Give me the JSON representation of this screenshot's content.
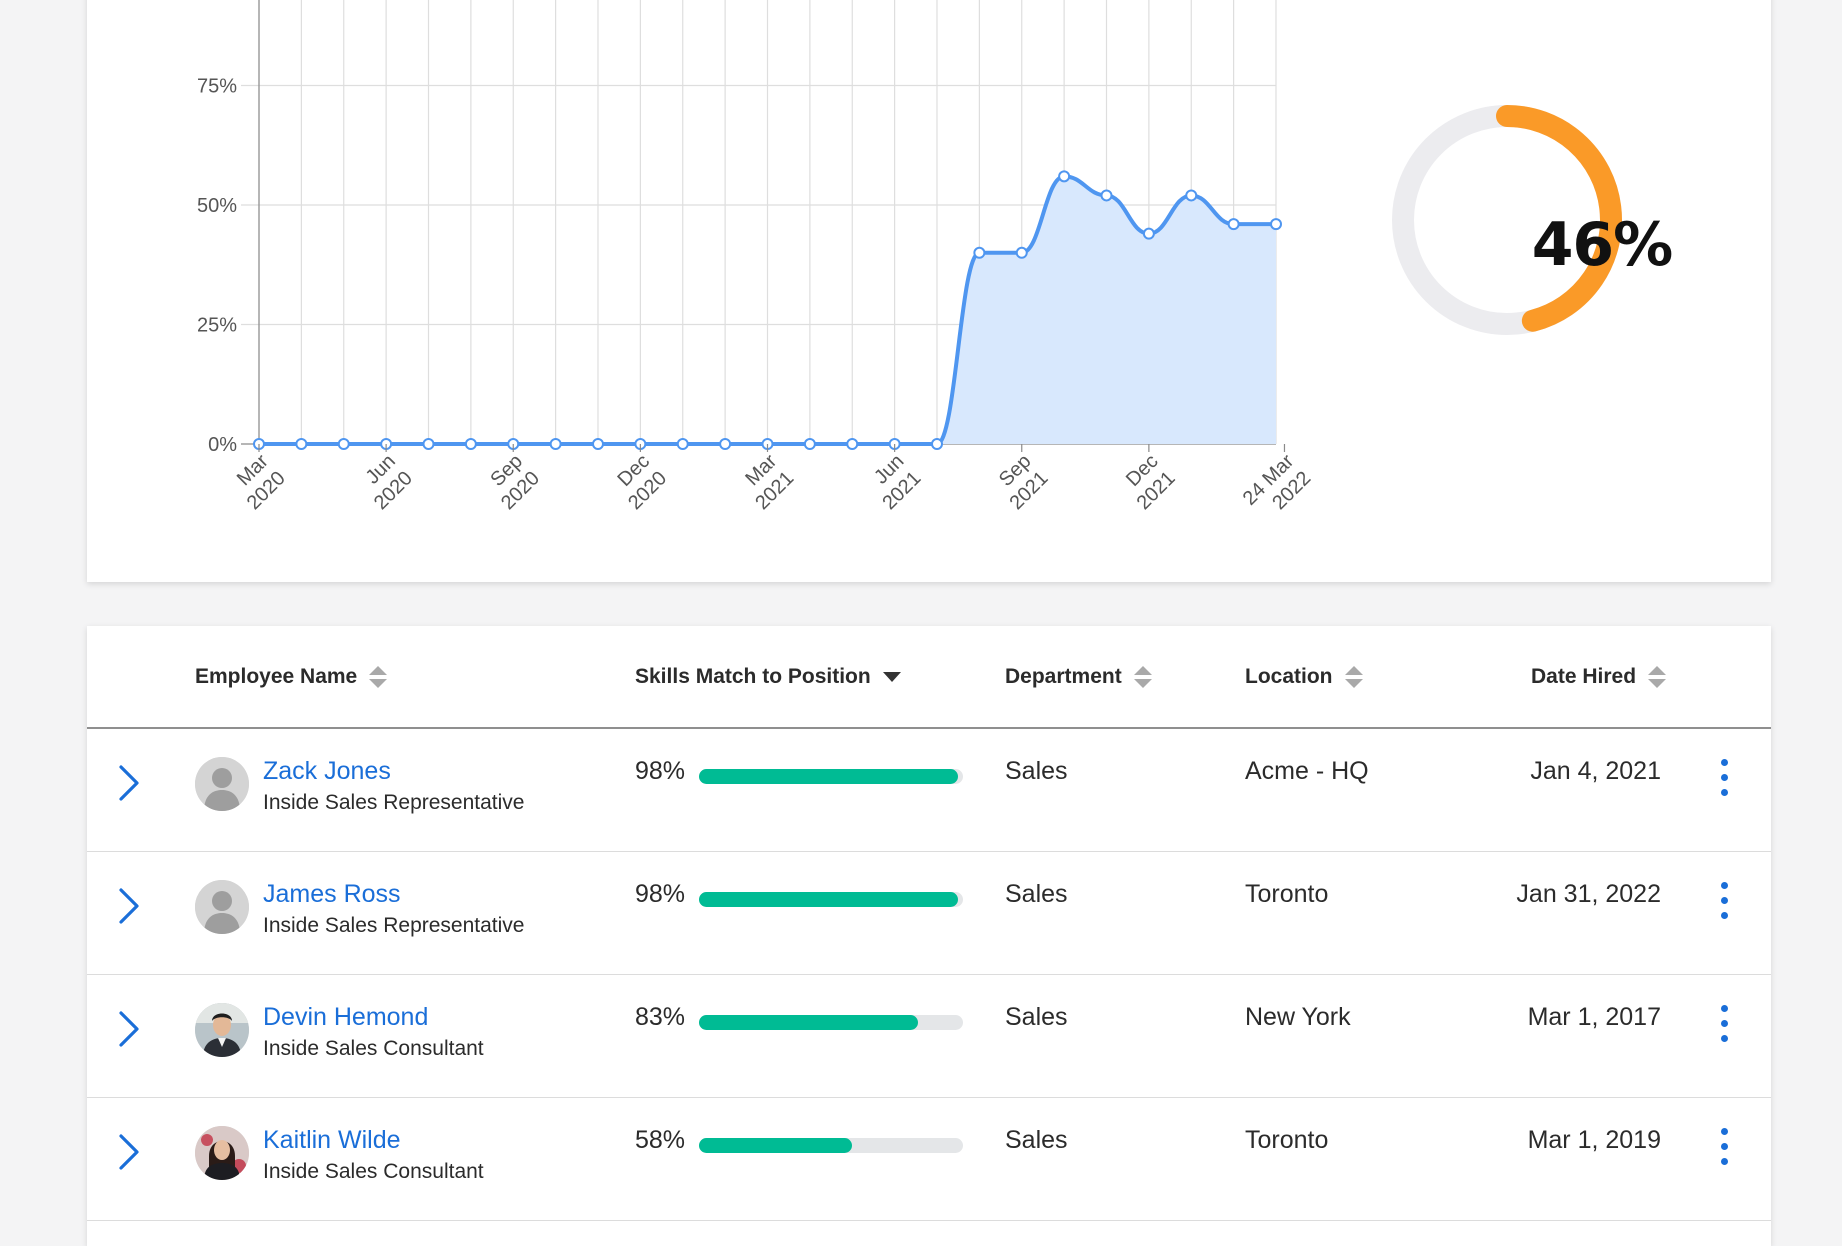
{
  "colors": {
    "line": "#4f96f0",
    "area": "#d8e8fd",
    "donut_track": "#ececef",
    "donut_fill": "#fa9a28",
    "link": "#1a6ed8",
    "bar": "#00bb94",
    "bar_track": "#e4e6e8"
  },
  "chart_data": [
    {
      "type": "area",
      "title": "",
      "xlabel": "",
      "ylabel": "",
      "ylim": [
        0,
        100
      ],
      "y_ticks": [
        "0%",
        "25%",
        "50%",
        "75%"
      ],
      "x_ticks": [
        {
          "index": 0,
          "label": [
            "Mar",
            "2020"
          ]
        },
        {
          "index": 3,
          "label": [
            "Jun",
            "2020"
          ]
        },
        {
          "index": 6,
          "label": [
            "Sep",
            "2020"
          ]
        },
        {
          "index": 9,
          "label": [
            "Dec",
            "2020"
          ]
        },
        {
          "index": 12,
          "label": [
            "Mar",
            "2021"
          ]
        },
        {
          "index": 15,
          "label": [
            "Jun",
            "2021"
          ]
        },
        {
          "index": 18,
          "label": [
            "Sep",
            "2021"
          ]
        },
        {
          "index": 21,
          "label": [
            "Dec",
            "2021"
          ]
        },
        {
          "index": 24.2,
          "label": [
            "24 Mar",
            "2022"
          ]
        }
      ],
      "grid": true,
      "x": [
        "Mar 2020",
        "Apr 2020",
        "May 2020",
        "Jun 2020",
        "Jul 2020",
        "Aug 2020",
        "Sep 2020",
        "Oct 2020",
        "Nov 2020",
        "Dec 2020",
        "Jan 2021",
        "Feb 2021",
        "Mar 2021",
        "Apr 2021",
        "May 2021",
        "Jun 2021",
        "Jul 2021",
        "Aug 2021",
        "Sep 2021",
        "Oct 2021",
        "Nov 2021",
        "Dec 2021",
        "Jan 2022",
        "Feb 2022",
        "24 Mar 2022"
      ],
      "series": [
        {
          "values": [
            0,
            0,
            0,
            0,
            0,
            0,
            0,
            0,
            0,
            0,
            0,
            0,
            0,
            0,
            0,
            0,
            0,
            40,
            40,
            56,
            52,
            44,
            52,
            46,
            46
          ]
        }
      ]
    },
    {
      "type": "pie",
      "value": 46,
      "label": "46%"
    }
  ],
  "table": {
    "columns": [
      {
        "label": "Employee Name",
        "sort": "none"
      },
      {
        "label": "Skills Match to Position",
        "sort": "desc"
      },
      {
        "label": "Department",
        "sort": "none"
      },
      {
        "label": "Location",
        "sort": "none"
      },
      {
        "label": "Date Hired",
        "sort": "none"
      }
    ],
    "rows": [
      {
        "name": "Zack Jones",
        "title": "Inside Sales Representative",
        "match": 98,
        "match_label": "98%",
        "department": "Sales",
        "location": "Acme - HQ",
        "hired": "Jan 4, 2021",
        "avatar": "placeholder"
      },
      {
        "name": "James Ross",
        "title": "Inside Sales Representative",
        "match": 98,
        "match_label": "98%",
        "department": "Sales",
        "location": "Toronto",
        "hired": "Jan 31, 2022",
        "avatar": "placeholder"
      },
      {
        "name": "Devin Hemond",
        "title": "Inside Sales Consultant",
        "match": 83,
        "match_label": "83%",
        "department": "Sales",
        "location": "New York",
        "hired": "Mar 1, 2017",
        "avatar": "photo"
      },
      {
        "name": "Kaitlin Wilde",
        "title": "Inside Sales Consultant",
        "match": 58,
        "match_label": "58%",
        "department": "Sales",
        "location": "Toronto",
        "hired": "Mar 1, 2019",
        "avatar": "photo"
      }
    ]
  }
}
